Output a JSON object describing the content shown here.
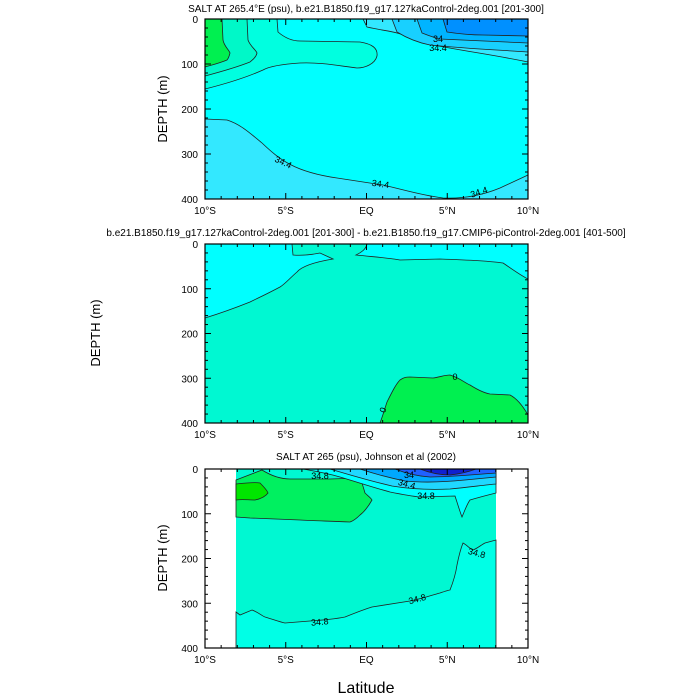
{
  "chart_data": {
    "type": "contour",
    "xlabel": "Latitude",
    "x_tick_labels": [
      "10°S",
      "5°S",
      "EQ",
      "5°N",
      "10°N"
    ],
    "x_ticks": [
      -10,
      -5,
      0,
      5,
      10
    ],
    "y_tick_labels": [
      "0",
      "100",
      "200",
      "300",
      "400"
    ],
    "y_ticks": [
      0,
      100,
      200,
      300,
      400
    ],
    "panels": [
      {
        "title": "SALT AT 265.4°E (psu), b.e21.B1850.f19_g17.127kaControl-2deg.001 [201-300]",
        "ylabel": "DEPTH (m)",
        "xlim": [
          -10,
          10
        ],
        "ylim": [
          400,
          0
        ],
        "contour_labels": [
          "34",
          "34.4",
          "34.4",
          "34.4",
          "34.4"
        ]
      },
      {
        "title": "b.e21.B1850.f19_g17.127kaControl-2deg.001 [201-300] - b.e21.B1850.f19_g17.CMIP6-piControl-2deg.001 [401-500]",
        "ylabel": "DEPTH (m)",
        "xlim": [
          -10,
          10
        ],
        "ylim": [
          400,
          0
        ],
        "contour_labels": [
          "0",
          "0"
        ]
      },
      {
        "title": "SALT AT 265 (psu), Johnson et al (2002)",
        "ylabel": "DEPTH (m)",
        "xlim": [
          -10,
          10
        ],
        "ylim": [
          400,
          0
        ],
        "data_xrange": [
          -8,
          8
        ],
        "contour_labels": [
          "34.8",
          "34",
          "34.4",
          "34.8",
          "34.8",
          "34.8",
          "34.8"
        ]
      }
    ],
    "colors": {
      "green": "#00f050",
      "teal": "#00f8d2",
      "cyan": "#00ffff",
      "lightblue": "#33e8ff",
      "blue": "#0090ff",
      "darkblue": "#1020e0"
    }
  }
}
